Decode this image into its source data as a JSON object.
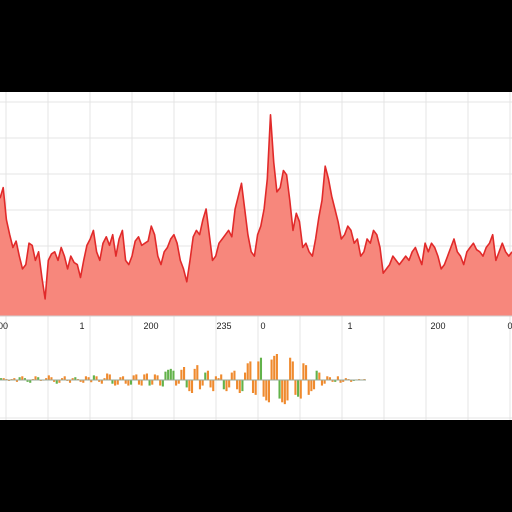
{
  "chart_data": [
    {
      "type": "area",
      "title": "",
      "xlabel": "",
      "ylabel": "",
      "grid": true,
      "colors": {
        "fill": "#f7877c",
        "line": "#e12a2a",
        "grid": "#e4e4e4"
      },
      "x_tick_labels": [
        "00",
        "1",
        "200",
        "235",
        "0",
        "1",
        "200",
        "0"
      ],
      "ylim": [
        0,
        100
      ],
      "series": [
        {
          "values": [
            55,
            60,
            45,
            38,
            32,
            35,
            28,
            22,
            24,
            34,
            33,
            26,
            30,
            18,
            8,
            26,
            29,
            30,
            26,
            32,
            28,
            22,
            28,
            25,
            24,
            18,
            26,
            33,
            36,
            40,
            30,
            26,
            34,
            37,
            33,
            38,
            28,
            36,
            40,
            26,
            24,
            28,
            35,
            37,
            33,
            34,
            35,
            42,
            38,
            28,
            24,
            30,
            32,
            36,
            38,
            34,
            26,
            22,
            16,
            26,
            37,
            40,
            38,
            45,
            50,
            38,
            26,
            28,
            34,
            36,
            38,
            40,
            37,
            50,
            56,
            62,
            50,
            38,
            30,
            28,
            38,
            42,
            50,
            64,
            94,
            72,
            58,
            60,
            68,
            66,
            54,
            40,
            48,
            44,
            32,
            34,
            30,
            28,
            36,
            46,
            54,
            70,
            64,
            56,
            50,
            44,
            36,
            38,
            42,
            40,
            34,
            36,
            28,
            30,
            36,
            34,
            40,
            38,
            32,
            20,
            22,
            24,
            28,
            26,
            24,
            26,
            28,
            26,
            30,
            32,
            28,
            24,
            34,
            30,
            34,
            32,
            28,
            22,
            24,
            28,
            32,
            36,
            30,
            28,
            24,
            30,
            32,
            34,
            31,
            30,
            28,
            32,
            34,
            38,
            26,
            30,
            34,
            30,
            28,
            30
          ]
        }
      ]
    },
    {
      "type": "bar",
      "title": "",
      "xlabel": "",
      "ylabel": "",
      "colors": {
        "positive": "#62b24a",
        "negative": "#ef8a2e",
        "axis": "#9aaa9a"
      },
      "series": [
        {
          "values": [
            1,
            1,
            0.5,
            -0.5,
            0.5,
            1,
            -1,
            1.5,
            2,
            1,
            -1,
            -1.5,
            0.5,
            2,
            1.5,
            -0.5,
            0,
            1,
            2.5,
            1.5,
            -1,
            -2,
            -1.5,
            1,
            2,
            -0.5,
            -1.5,
            1,
            1.5,
            0.5,
            -1,
            -1.5,
            2,
            1.5,
            -1.2,
            2.5,
            2,
            -1,
            -2,
            1,
            3.5,
            3,
            -2,
            -3,
            -2.5,
            1.5,
            2,
            -2,
            -3,
            -2.5,
            2.5,
            3,
            -2.5,
            -3,
            3,
            3.5,
            -3,
            -2.5,
            3,
            2.5,
            -3,
            -3.5,
            4.5,
            5.5,
            6,
            5,
            -3,
            -2,
            5.5,
            7,
            -4,
            -6,
            -7,
            6,
            8,
            -5,
            -3,
            4,
            5,
            -4,
            -6,
            2,
            1,
            3,
            -5,
            -6,
            -4,
            4,
            5,
            -5,
            -7,
            -6,
            4,
            9,
            10,
            -7,
            -8,
            10,
            12,
            -9,
            -11,
            -12,
            11,
            13,
            14,
            -10,
            -12,
            -13,
            -11,
            12,
            10,
            -8,
            -9,
            -10,
            9,
            8,
            -8,
            -6,
            -5,
            5,
            4,
            -3,
            -2,
            2,
            1.5,
            -1,
            -1,
            2,
            -1.5,
            -1,
            1,
            0.5,
            -1,
            -0.5,
            0.3,
            0.5,
            0.3,
            0.5
          ]
        }
      ]
    }
  ]
}
